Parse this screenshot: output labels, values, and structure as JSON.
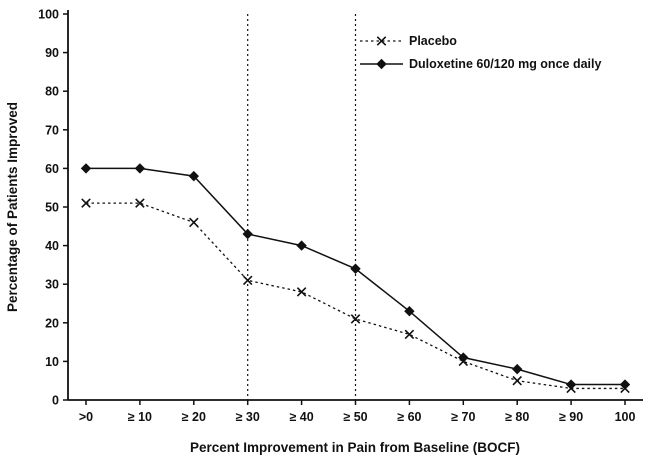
{
  "chart_data": {
    "type": "line",
    "title": "",
    "xlabel": "Percent Improvement in Pain from Baseline (BOCF)",
    "ylabel": "Percentage of Patients Improved",
    "categories": [
      ">0",
      "≥ 10",
      "≥ 20",
      "≥ 30",
      "≥ 40",
      "≥ 50",
      "≥ 60",
      "≥ 70",
      "≥ 80",
      "≥ 90",
      "100"
    ],
    "series": [
      {
        "name": "Placebo",
        "marker": "x",
        "line": "dotted",
        "values": [
          51,
          51,
          46,
          31,
          28,
          21,
          17,
          10,
          5,
          3,
          3
        ]
      },
      {
        "name": "Duloxetine 60/120 mg once daily",
        "marker": "diamond",
        "line": "solid",
        "values": [
          60,
          60,
          58,
          43,
          40,
          34,
          23,
          11,
          8,
          4,
          4
        ]
      }
    ],
    "ylim": [
      0,
      100
    ],
    "ytick_step": 10,
    "reference_lines": {
      "vertical_at_categories": [
        "≥ 30",
        "≥ 50"
      ]
    },
    "legend_position": "top-right-inside",
    "grid": "off",
    "colors": {
      "ink": "#111111",
      "background": "#ffffff"
    }
  }
}
